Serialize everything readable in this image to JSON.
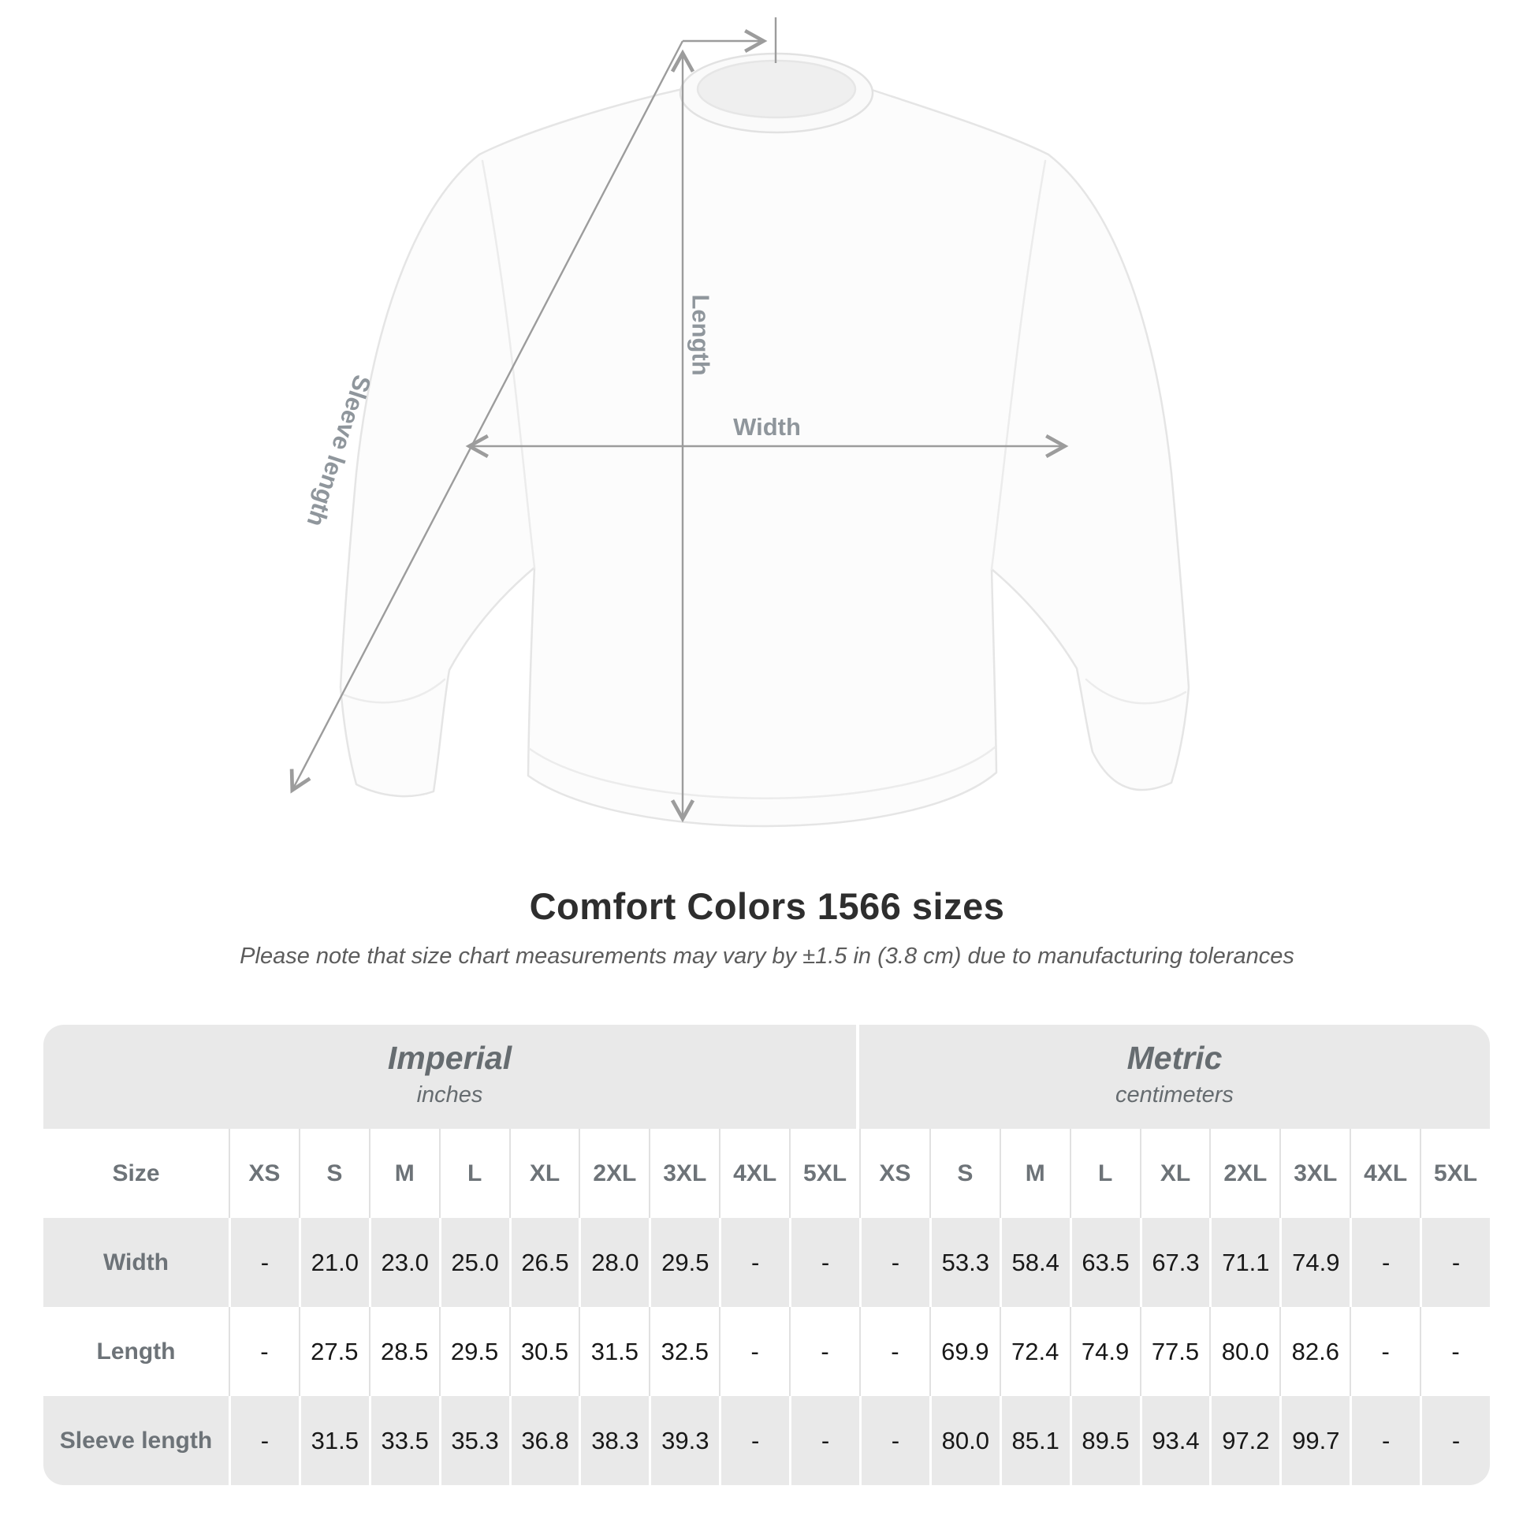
{
  "diagram": {
    "labels": {
      "length": "Length",
      "width": "Width",
      "sleeve": "Sleeve length"
    },
    "garment": "white crewneck sweatshirt, front view",
    "arrow_color": "#9c9c9c",
    "label_color": "#8f969c"
  },
  "title": "Comfort Colors 1566 sizes",
  "subtitle": "Please note that size chart measurements may vary by ±1.5 in (3.8 cm) due to manufacturing tolerances",
  "table": {
    "size_header_label": "Size",
    "sizes": [
      "XS",
      "S",
      "M",
      "L",
      "XL",
      "2XL",
      "3XL",
      "4XL",
      "5XL"
    ],
    "unit_groups": [
      {
        "label": "Imperial",
        "sublabel": "inches"
      },
      {
        "label": "Metric",
        "sublabel": "centimeters"
      }
    ],
    "rows": [
      {
        "label": "Width",
        "imperial": [
          "-",
          "21.0",
          "23.0",
          "25.0",
          "26.5",
          "28.0",
          "29.5",
          "-",
          "-"
        ],
        "metric": [
          "-",
          "53.3",
          "58.4",
          "63.5",
          "67.3",
          "71.1",
          "74.9",
          "-",
          "-"
        ]
      },
      {
        "label": "Length",
        "imperial": [
          "-",
          "27.5",
          "28.5",
          "29.5",
          "30.5",
          "31.5",
          "32.5",
          "-",
          "-"
        ],
        "metric": [
          "-",
          "69.9",
          "72.4",
          "74.9",
          "77.5",
          "80.0",
          "82.6",
          "-",
          "-"
        ]
      },
      {
        "label": "Sleeve length",
        "imperial": [
          "-",
          "31.5",
          "33.5",
          "35.3",
          "36.8",
          "38.3",
          "39.3",
          "-",
          "-"
        ],
        "metric": [
          "-",
          "80.0",
          "85.1",
          "89.5",
          "93.4",
          "97.2",
          "99.7",
          "-",
          "-"
        ]
      }
    ],
    "header_band_color": "#e9e9e9",
    "row_alt_color": "#e9e9e9"
  },
  "chart_data": {
    "type": "table",
    "title": "Comfort Colors 1566 sizes",
    "note": "Measurements may vary by ±1.5 in (3.8 cm) due to manufacturing tolerances",
    "sizes": [
      "XS",
      "S",
      "M",
      "L",
      "XL",
      "2XL",
      "3XL",
      "4XL",
      "5XL"
    ],
    "series": [
      {
        "name": "Width (inches)",
        "values": [
          null,
          21.0,
          23.0,
          25.0,
          26.5,
          28.0,
          29.5,
          null,
          null
        ]
      },
      {
        "name": "Length (inches)",
        "values": [
          null,
          27.5,
          28.5,
          29.5,
          30.5,
          31.5,
          32.5,
          null,
          null
        ]
      },
      {
        "name": "Sleeve length (inches)",
        "values": [
          null,
          31.5,
          33.5,
          35.3,
          36.8,
          38.3,
          39.3,
          null,
          null
        ]
      },
      {
        "name": "Width (cm)",
        "values": [
          null,
          53.3,
          58.4,
          63.5,
          67.3,
          71.1,
          74.9,
          null,
          null
        ]
      },
      {
        "name": "Length (cm)",
        "values": [
          null,
          69.9,
          72.4,
          74.9,
          77.5,
          80.0,
          82.6,
          null,
          null
        ]
      },
      {
        "name": "Sleeve length (cm)",
        "values": [
          null,
          80.0,
          85.1,
          89.5,
          93.4,
          97.2,
          99.7,
          null,
          null
        ]
      }
    ]
  }
}
